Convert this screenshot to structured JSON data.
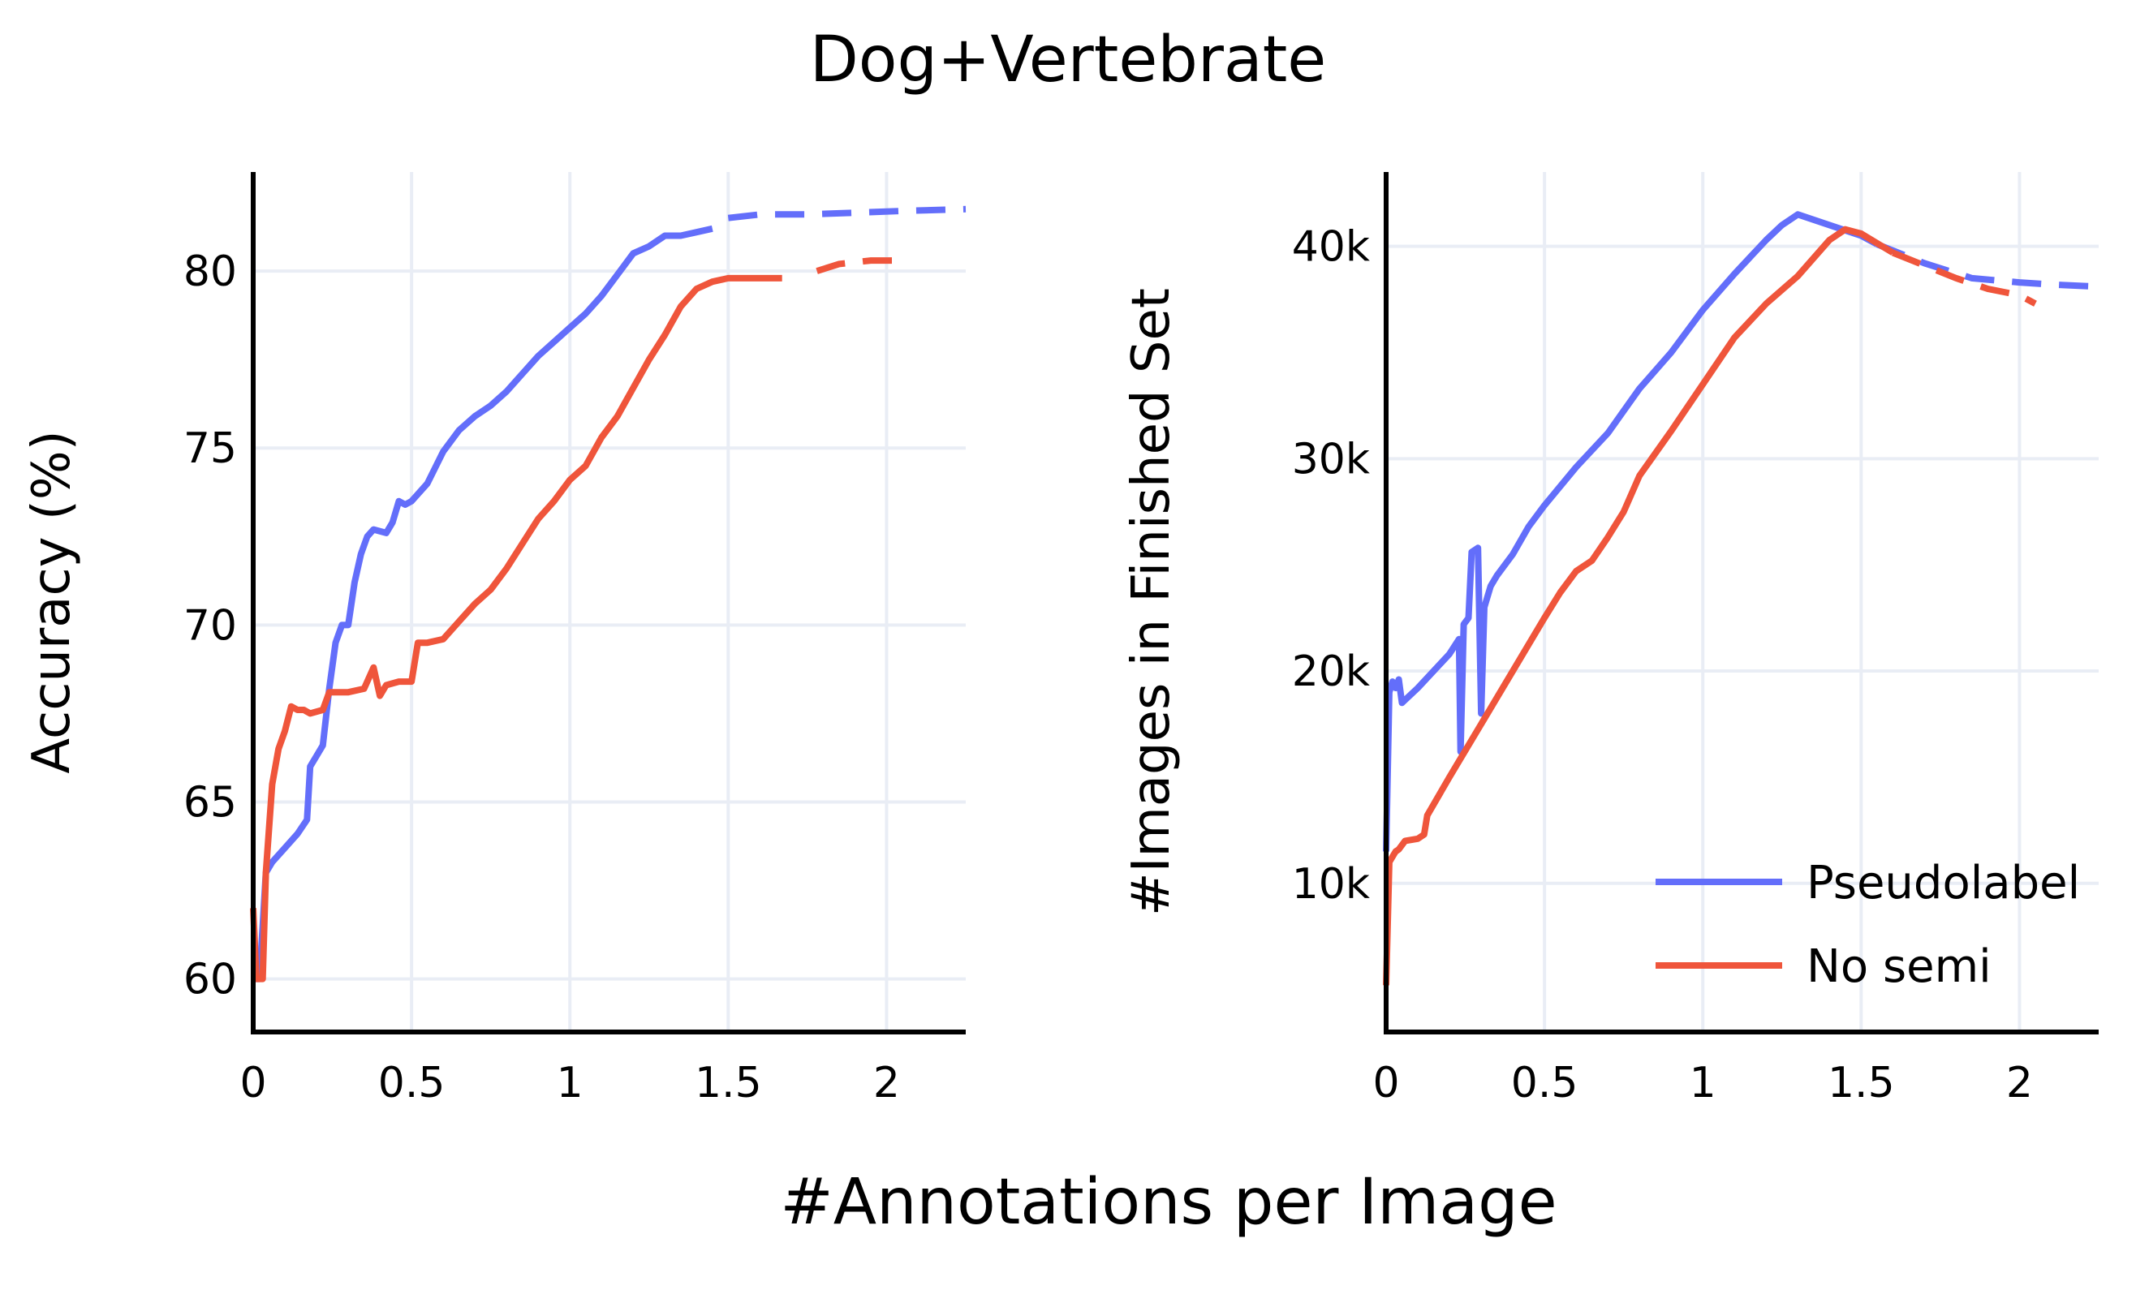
{
  "figure": {
    "title": "Dog+Vertebrate",
    "xlabel": "#Annotations per Image"
  },
  "legend": {
    "items": [
      {
        "label": "Pseudolabel",
        "color": "#636efa"
      },
      {
        "label": "No semi",
        "color": "#ef553b"
      }
    ]
  },
  "chart_data": [
    {
      "type": "line",
      "ylabel": "Accuracy (%)",
      "xlim": [
        0,
        2.25
      ],
      "ylim": [
        58.5,
        82.8
      ],
      "xticks": [
        0,
        0.5,
        1,
        1.5,
        2
      ],
      "xtick_labels": [
        "0",
        "0.5",
        "1",
        "1.5",
        "2"
      ],
      "yticks": [
        60,
        65,
        70,
        75,
        80
      ],
      "ytick_labels": [
        "60",
        "65",
        "70",
        "75",
        "80"
      ],
      "grid": true,
      "series": [
        {
          "name": "Pseudolabel",
          "color": "#636efa",
          "solid": [
            [
              0,
              60
            ],
            [
              0.02,
              60
            ],
            [
              0.04,
              63
            ],
            [
              0.06,
              63.3
            ],
            [
              0.1,
              63.7
            ],
            [
              0.14,
              64.1
            ],
            [
              0.17,
              64.5
            ],
            [
              0.18,
              66
            ],
            [
              0.2,
              66.3
            ],
            [
              0.22,
              66.6
            ],
            [
              0.24,
              68.2
            ],
            [
              0.26,
              69.5
            ],
            [
              0.28,
              70
            ],
            [
              0.3,
              70
            ],
            [
              0.32,
              71.2
            ],
            [
              0.34,
              72
            ],
            [
              0.36,
              72.5
            ],
            [
              0.38,
              72.7
            ],
            [
              0.42,
              72.6
            ],
            [
              0.44,
              72.9
            ],
            [
              0.46,
              73.5
            ],
            [
              0.48,
              73.4
            ],
            [
              0.5,
              73.5
            ],
            [
              0.55,
              74
            ],
            [
              0.6,
              74.9
            ],
            [
              0.65,
              75.5
            ],
            [
              0.7,
              75.9
            ],
            [
              0.75,
              76.2
            ],
            [
              0.8,
              76.6
            ],
            [
              0.85,
              77.1
            ],
            [
              0.9,
              77.6
            ],
            [
              0.95,
              78
            ],
            [
              1.0,
              78.4
            ],
            [
              1.05,
              78.8
            ],
            [
              1.1,
              79.3
            ],
            [
              1.15,
              79.9
            ],
            [
              1.2,
              80.5
            ],
            [
              1.25,
              80.7
            ],
            [
              1.3,
              81
            ],
            [
              1.35,
              81
            ],
            [
              1.4,
              81.1
            ],
            [
              1.45,
              81.2
            ]
          ],
          "dashed": [
            [
              1.5,
              81.5
            ],
            [
              1.6,
              81.6
            ],
            [
              1.75,
              81.6
            ],
            [
              1.9,
              81.65
            ],
            [
              2.05,
              81.7
            ],
            [
              2.25,
              81.75
            ]
          ]
        },
        {
          "name": "No semi",
          "color": "#ef553b",
          "solid": [
            [
              0,
              62
            ],
            [
              0.01,
              60
            ],
            [
              0.03,
              60
            ],
            [
              0.04,
              63
            ],
            [
              0.06,
              65.5
            ],
            [
              0.08,
              66.5
            ],
            [
              0.1,
              67
            ],
            [
              0.12,
              67.7
            ],
            [
              0.14,
              67.6
            ],
            [
              0.16,
              67.6
            ],
            [
              0.18,
              67.5
            ],
            [
              0.22,
              67.6
            ],
            [
              0.24,
              68.1
            ],
            [
              0.3,
              68.1
            ],
            [
              0.35,
              68.2
            ],
            [
              0.38,
              68.8
            ],
            [
              0.4,
              68
            ],
            [
              0.42,
              68.3
            ],
            [
              0.46,
              68.4
            ],
            [
              0.5,
              68.4
            ],
            [
              0.52,
              69.5
            ],
            [
              0.55,
              69.5
            ],
            [
              0.6,
              69.6
            ],
            [
              0.65,
              70.1
            ],
            [
              0.7,
              70.6
            ],
            [
              0.75,
              71
            ],
            [
              0.8,
              71.6
            ],
            [
              0.85,
              72.3
            ],
            [
              0.9,
              73
            ],
            [
              0.95,
              73.5
            ],
            [
              1.0,
              74.1
            ],
            [
              1.05,
              74.5
            ],
            [
              1.1,
              75.3
            ],
            [
              1.15,
              75.9
            ],
            [
              1.2,
              76.7
            ],
            [
              1.25,
              77.5
            ],
            [
              1.3,
              78.2
            ],
            [
              1.35,
              79
            ],
            [
              1.4,
              79.5
            ],
            [
              1.45,
              79.7
            ],
            [
              1.5,
              79.8
            ],
            [
              1.55,
              79.8
            ],
            [
              1.6,
              79.8
            ],
            [
              1.67,
              79.8
            ]
          ],
          "dashed": [
            [
              1.78,
              80
            ],
            [
              1.85,
              80.2
            ],
            [
              1.95,
              80.3
            ],
            [
              2.05,
              80.3
            ]
          ]
        }
      ]
    },
    {
      "type": "line",
      "ylabel": "#Images in Finished Set",
      "xlim": [
        0,
        2.25
      ],
      "ylim": [
        3000,
        43500
      ],
      "xticks": [
        0,
        0.5,
        1,
        1.5,
        2
      ],
      "xtick_labels": [
        "0",
        "0.5",
        "1",
        "1.5",
        "2"
      ],
      "yticks": [
        10000,
        20000,
        30000,
        40000
      ],
      "ytick_labels": [
        "10k",
        "20k",
        "30k",
        "40k"
      ],
      "grid": true,
      "series": [
        {
          "name": "Pseudolabel",
          "color": "#636efa",
          "solid": [
            [
              0,
              11500
            ],
            [
              0.01,
              19000
            ],
            [
              0.02,
              19500
            ],
            [
              0.03,
              19200
            ],
            [
              0.04,
              19600
            ],
            [
              0.05,
              18500
            ],
            [
              0.1,
              19200
            ],
            [
              0.2,
              20800
            ],
            [
              0.23,
              21500
            ],
            [
              0.235,
              16200
            ],
            [
              0.245,
              22200
            ],
            [
              0.26,
              22500
            ],
            [
              0.27,
              25600
            ],
            [
              0.29,
              25800
            ],
            [
              0.3,
              18000
            ],
            [
              0.31,
              23000
            ],
            [
              0.33,
              24000
            ],
            [
              0.35,
              24500
            ],
            [
              0.4,
              25500
            ],
            [
              0.45,
              26800
            ],
            [
              0.5,
              27800
            ],
            [
              0.6,
              29600
            ],
            [
              0.7,
              31200
            ],
            [
              0.8,
              33300
            ],
            [
              0.9,
              35000
            ],
            [
              1.0,
              37000
            ],
            [
              1.1,
              38700
            ],
            [
              1.2,
              40300
            ],
            [
              1.25,
              41000
            ],
            [
              1.3,
              41500
            ],
            [
              1.4,
              41000
            ],
            [
              1.5,
              40500
            ],
            [
              1.55,
              40100
            ]
          ],
          "dashed": [
            [
              1.55,
              40100
            ],
            [
              1.7,
              39200
            ],
            [
              1.85,
              38500
            ],
            [
              2.0,
              38300
            ],
            [
              2.1,
              38200
            ],
            [
              2.25,
              38100
            ]
          ]
        },
        {
          "name": "No semi",
          "color": "#ef553b",
          "solid": [
            [
              0,
              5200
            ],
            [
              0.01,
              11000
            ],
            [
              0.03,
              11500
            ],
            [
              0.04,
              11600
            ],
            [
              0.06,
              12000
            ],
            [
              0.1,
              12100
            ],
            [
              0.12,
              12300
            ],
            [
              0.13,
              13200
            ],
            [
              0.2,
              15000
            ],
            [
              0.3,
              17500
            ],
            [
              0.4,
              20000
            ],
            [
              0.5,
              22500
            ],
            [
              0.55,
              23700
            ],
            [
              0.6,
              24700
            ],
            [
              0.65,
              25200
            ],
            [
              0.7,
              26300
            ],
            [
              0.75,
              27500
            ],
            [
              0.8,
              29200
            ],
            [
              0.9,
              31300
            ],
            [
              1.0,
              33500
            ],
            [
              1.1,
              35700
            ],
            [
              1.2,
              37300
            ],
            [
              1.3,
              38600
            ],
            [
              1.4,
              40300
            ],
            [
              1.45,
              40800
            ],
            [
              1.5,
              40600
            ],
            [
              1.6,
              39700
            ]
          ],
          "dashed": [
            [
              1.6,
              39700
            ],
            [
              1.7,
              39100
            ],
            [
              1.8,
              38500
            ],
            [
              1.9,
              38000
            ],
            [
              2.0,
              37700
            ],
            [
              2.05,
              37300
            ]
          ]
        }
      ]
    }
  ]
}
